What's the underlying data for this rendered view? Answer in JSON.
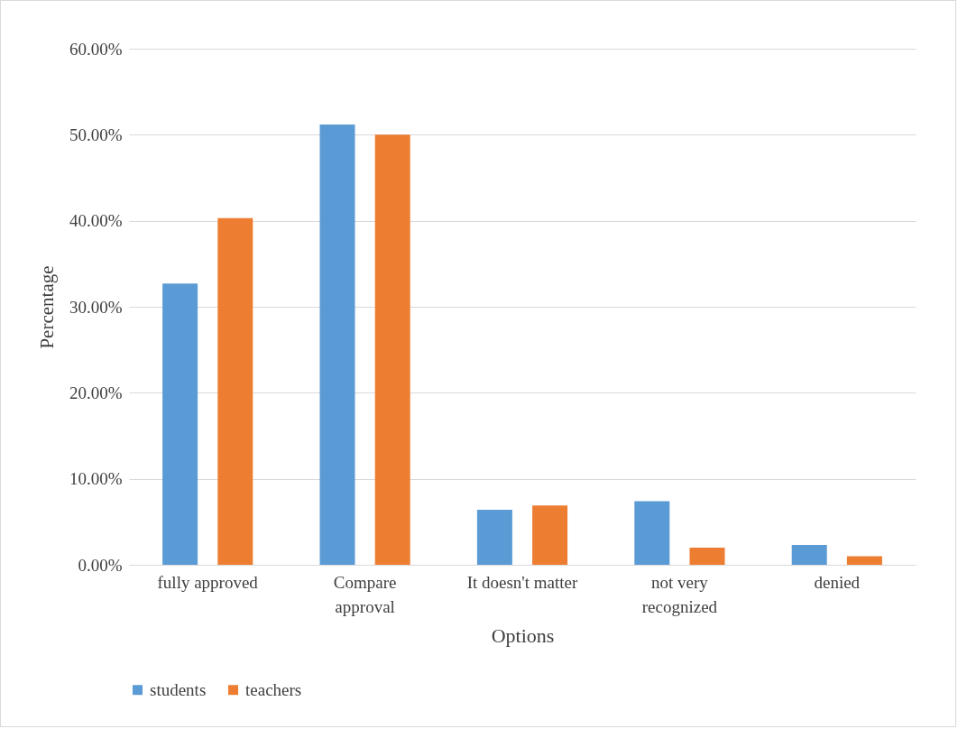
{
  "chart_data": {
    "type": "bar",
    "xlabel": "Options",
    "ylabel": "Percentage",
    "categories": [
      "fully approved",
      "Compare approval",
      "It doesn't matter",
      "not very recognized",
      "denied"
    ],
    "series": [
      {
        "name": "students",
        "color": "#5b9bd5",
        "values": [
          32.7,
          51.2,
          6.4,
          7.4,
          2.3
        ]
      },
      {
        "name": "teachers",
        "color": "#ed7d31",
        "values": [
          40.3,
          50.0,
          6.9,
          2.0,
          1.0
        ]
      }
    ],
    "ylim": [
      0,
      60
    ],
    "yticks": [
      {
        "value": 0,
        "label": "0.00%"
      },
      {
        "value": 10,
        "label": "10.00%"
      },
      {
        "value": 20,
        "label": "20.00%"
      },
      {
        "value": 30,
        "label": "30.00%"
      },
      {
        "value": 40,
        "label": "40.00%"
      },
      {
        "value": 50,
        "label": "50.00%"
      },
      {
        "value": 60,
        "label": "60.00%"
      }
    ],
    "grid": "y",
    "legend": "bottom"
  }
}
